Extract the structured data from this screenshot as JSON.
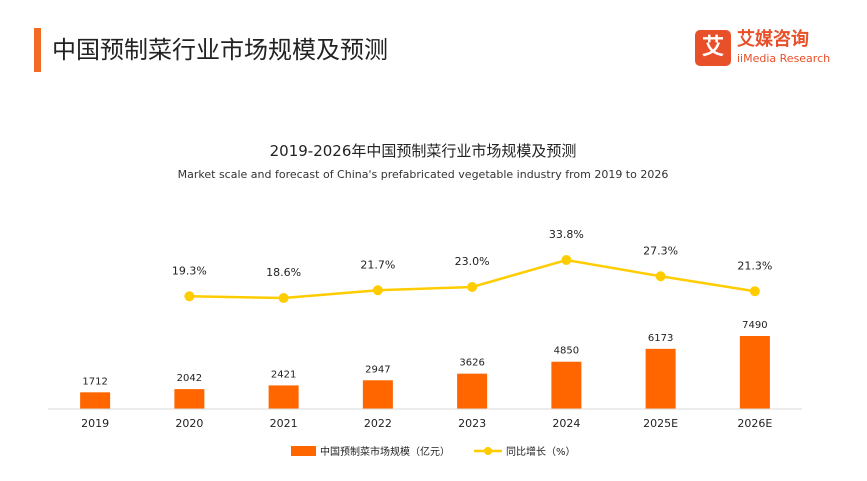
{
  "header": {
    "title": "中国预制菜行业市场规模及预测"
  },
  "logo": {
    "icon_char": "艾",
    "name_cn": "艾媒咨询",
    "name_en": "iiMedia Research"
  },
  "colors": {
    "accent": "#F26B24",
    "bar": "#FF6600",
    "line": "#FFCC00",
    "logo": "#E8502A"
  },
  "chart_data": {
    "type": "bar+line",
    "title": "2019-2026年中国预制菜行业市场规模及预测",
    "subtitle": "Market scale and forecast of China's prefabricated vegetable industry from 2019 to 2026",
    "categories": [
      "2019",
      "2020",
      "2021",
      "2022",
      "2023",
      "2024",
      "2025E",
      "2026E"
    ],
    "series": [
      {
        "name": "中国预制菜市场规模（亿元）",
        "type": "bar",
        "values": [
          1712,
          2042,
          2421,
          2947,
          3626,
          4850,
          6173,
          7490
        ],
        "labels": [
          "1712",
          "2042",
          "2421",
          "2947",
          "3626",
          "4850",
          "6173",
          "7490"
        ]
      },
      {
        "name": "同比增长（%）",
        "type": "line",
        "values": [
          null,
          19.3,
          18.6,
          21.7,
          23.0,
          33.8,
          27.3,
          21.3
        ],
        "labels": [
          "",
          "19.3%",
          "18.6%",
          "21.7%",
          "23.0%",
          "33.8%",
          "27.3%",
          "21.3%"
        ]
      }
    ],
    "legend_position": "bottom-center"
  }
}
